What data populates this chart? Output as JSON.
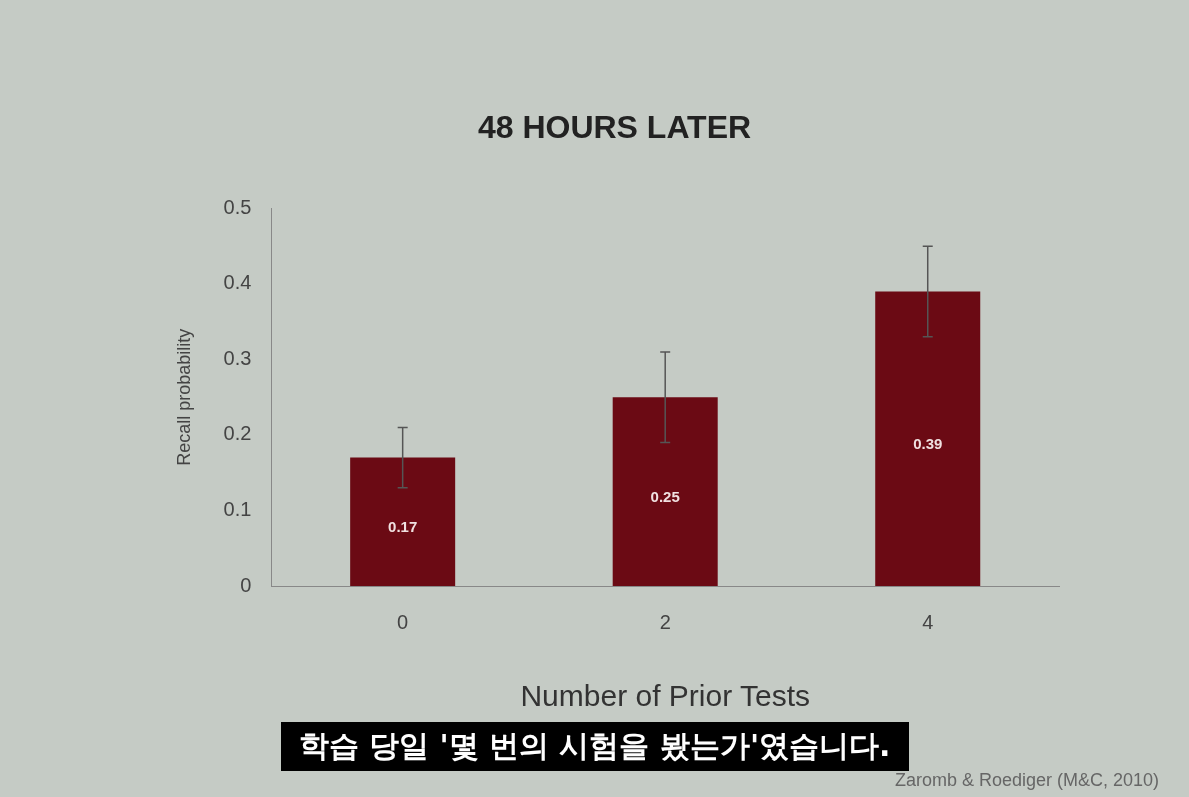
{
  "chart_data": {
    "type": "bar",
    "title": "48 HOURS LATER",
    "xlabel": "Number of Prior Tests",
    "ylabel": "Recall probability",
    "categories": [
      "0",
      "2",
      "4"
    ],
    "values": [
      0.17,
      0.25,
      0.39
    ],
    "errors": [
      0.04,
      0.06,
      0.06
    ],
    "color": "#6b0a14",
    "ylim": [
      0,
      0.5
    ],
    "yticks": [
      0,
      0.1,
      0.2,
      0.3,
      0.4,
      0.5
    ],
    "grid": false,
    "legend": false,
    "data_labels": true,
    "annotations": [
      "학습 당일 '몇 번의 시험을 봤는가'였습니다.",
      "Zaromb & Roediger (M&C, 2010)"
    ]
  }
}
